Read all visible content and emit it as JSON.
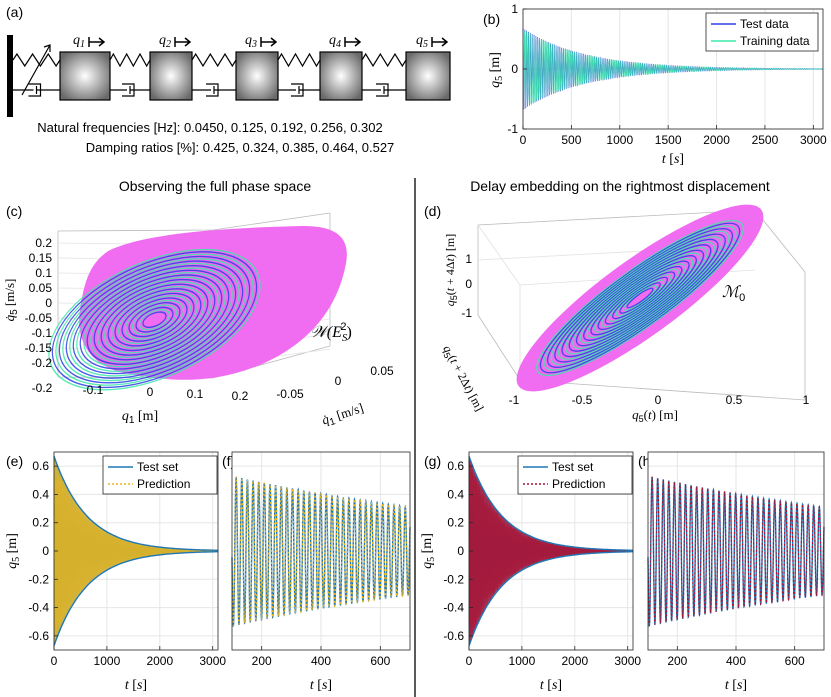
{
  "panels": {
    "a": {
      "letter": "(a)",
      "masses": [
        "q1",
        "q2",
        "q3",
        "q4",
        "q5"
      ],
      "freq_label": "Natural frequencies [Hz]: 0.0450, 0.125, 0.192, 0.256, 0.302",
      "damp_label": "Damping ratios [%]: 0.425, 0.324, 0.385, 0.464, 0.527"
    },
    "b": {
      "letter": "(b)"
    },
    "c": {
      "letter": "(c)",
      "title": "Observing the full phase space",
      "annotation": "W(E_S^2)"
    },
    "d": {
      "letter": "(d)",
      "title": "Delay embedding on the rightmost displacement",
      "annotation": "M_0"
    },
    "e": {
      "letter": "(e)"
    },
    "f": {
      "letter": "(f)"
    },
    "g": {
      "letter": "(g)"
    },
    "h": {
      "letter": "(h)"
    }
  },
  "colors": {
    "test": "#1f77b4",
    "training": "#3de8a8",
    "blue": "#2c3ee6",
    "magenta": "#f06cf0",
    "yellow": "#e8b61e",
    "red": "#b01030"
  },
  "chart_data": [
    {
      "id": "b",
      "type": "line",
      "xlabel": "t [s]",
      "ylabel": "q5 [m]",
      "xlim": [
        0,
        3100
      ],
      "ylim": [
        -1,
        1
      ],
      "xticks": [
        0,
        500,
        1000,
        1500,
        2000,
        2500,
        3000
      ],
      "yticks": [
        -1,
        0,
        1
      ],
      "legend": "top-right",
      "series": [
        {
          "name": "Test data",
          "amp0": 0.68,
          "decay": 0.0016
        },
        {
          "name": "Training data",
          "amp0": 0.66,
          "decay": 0.0016
        }
      ]
    },
    {
      "id": "c",
      "type": "line",
      "xlabel": "q1 [m]",
      "ylabel": "q̇5 [m/s]",
      "zlabel": "q̇1 [m/s]",
      "xticks": [
        -0.2,
        -0.1,
        0,
        0.1,
        0.2
      ],
      "yticks": [
        -0.2,
        -0.15,
        -0.1,
        -0.05,
        0,
        0.05,
        0.1,
        0.15,
        0.2
      ],
      "zticks": [
        -0.05,
        0,
        0.05
      ]
    },
    {
      "id": "d",
      "type": "line",
      "xlabel": "q5(t) [m]",
      "ylabel": "q5(t + 4Δt) [m]",
      "zlabel": "q5(t + 2Δt) [m]",
      "xticks": [
        -1,
        -0.5,
        0,
        0.5,
        1
      ],
      "yticks": [
        -1,
        0,
        1
      ]
    },
    {
      "id": "e",
      "type": "line",
      "xlabel": "t [s]",
      "ylabel": "q5 [m]",
      "xlim": [
        0,
        3100
      ],
      "ylim": [
        -0.7,
        0.7
      ],
      "xticks": [
        0,
        1000,
        2000,
        3000
      ],
      "yticks": [
        -0.6,
        -0.4,
        -0.2,
        0,
        0.2,
        0.4,
        0.6
      ],
      "legend": "top-right",
      "series": [
        {
          "name": "Test set"
        },
        {
          "name": "Prediction"
        }
      ]
    },
    {
      "id": "f",
      "type": "line",
      "xlabel": "t [s]",
      "xlim": [
        100,
        700
      ],
      "xticks": [
        200,
        400,
        600
      ],
      "series": [
        {
          "name": "Test set"
        },
        {
          "name": "Prediction"
        }
      ]
    },
    {
      "id": "g",
      "type": "line",
      "xlabel": "t [s]",
      "ylabel": "q5 [m]",
      "xlim": [
        0,
        3100
      ],
      "ylim": [
        -0.7,
        0.7
      ],
      "xticks": [
        0,
        1000,
        2000,
        3000
      ],
      "yticks": [
        -0.6,
        -0.4,
        -0.2,
        0,
        0.2,
        0.4,
        0.6
      ],
      "legend": "top-right",
      "series": [
        {
          "name": "Test set"
        },
        {
          "name": "Prediction"
        }
      ]
    },
    {
      "id": "h",
      "type": "line",
      "xlabel": "t [s]",
      "xlim": [
        100,
        700
      ],
      "xticks": [
        200,
        400,
        600
      ],
      "series": [
        {
          "name": "Test set"
        },
        {
          "name": "Prediction"
        }
      ]
    }
  ]
}
